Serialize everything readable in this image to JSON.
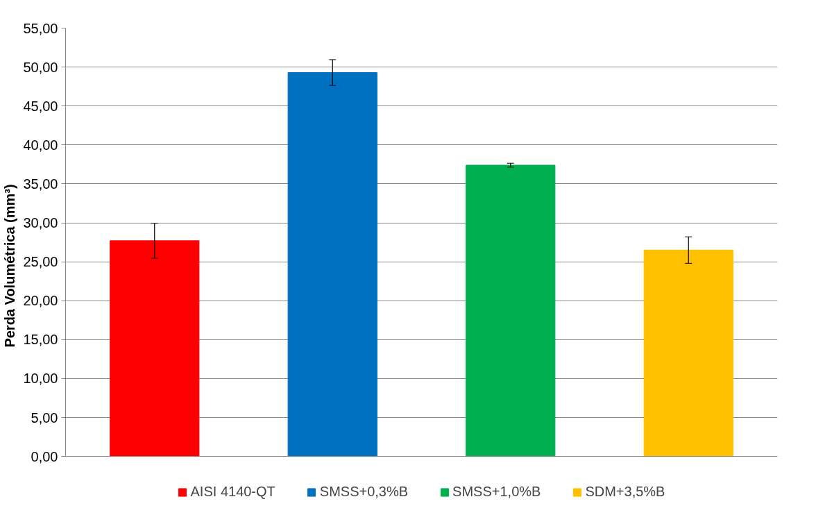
{
  "chart_data": {
    "type": "bar",
    "ylabel": "Perda Volumétrica (mm³)",
    "categories": [
      null,
      null,
      null,
      null
    ],
    "series": [
      {
        "name": "AISI 4140-QT",
        "color": "#ff0000",
        "values": [
          27.7,
          null,
          null,
          null
        ],
        "errors": [
          2.25,
          null,
          null,
          null
        ]
      },
      {
        "name": "SMSS+0,3%B",
        "color": "#0070c0",
        "values": [
          null,
          49.3,
          null,
          null
        ],
        "errors": [
          null,
          1.65,
          null,
          null
        ]
      },
      {
        "name": "SMSS+1,0%B",
        "color": "#00b050",
        "values": [
          null,
          null,
          37.4,
          null
        ],
        "errors": [
          null,
          null,
          0.25,
          null
        ]
      },
      {
        "name": "SDM+3,5%B",
        "color": "#ffc000",
        "values": [
          null,
          null,
          null,
          26.5
        ],
        "errors": [
          null,
          null,
          null,
          1.7
        ]
      }
    ],
    "ylim": [
      0,
      55
    ],
    "yticks": [
      {
        "value": 0,
        "label": "0,00"
      },
      {
        "value": 5,
        "label": "5,00"
      },
      {
        "value": 10,
        "label": "10,00"
      },
      {
        "value": 15,
        "label": "15,00"
      },
      {
        "value": 20,
        "label": "20,00"
      },
      {
        "value": 25,
        "label": "25,00"
      },
      {
        "value": 30,
        "label": "30,00"
      },
      {
        "value": 35,
        "label": "35,00"
      },
      {
        "value": 40,
        "label": "40,00"
      },
      {
        "value": 45,
        "label": "45,00"
      },
      {
        "value": 50,
        "label": "50,00"
      },
      {
        "value": 55,
        "label": "55,00"
      }
    ],
    "grid": "y",
    "legend": "bottom"
  }
}
